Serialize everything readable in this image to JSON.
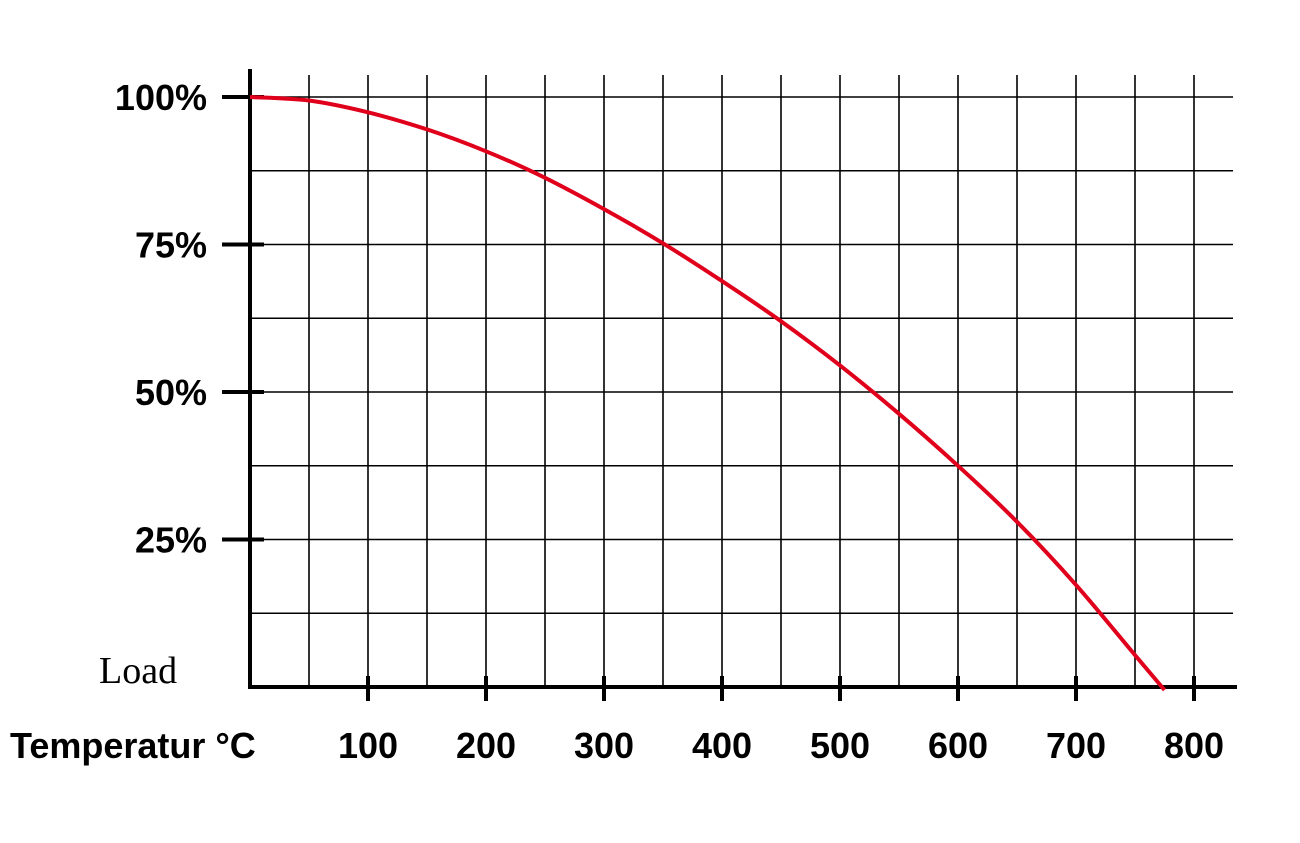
{
  "chart_data": {
    "type": "line",
    "title": "",
    "xlabel": "Temperatur °C",
    "ylabel": "Load",
    "xlim": [
      0,
      840
    ],
    "ylim": [
      0,
      100
    ],
    "x_ticks": [
      100,
      200,
      300,
      400,
      500,
      600,
      700,
      800
    ],
    "x_tick_labels": [
      "100",
      "200",
      "300",
      "400",
      "500",
      "600",
      "700",
      "800"
    ],
    "y_ticks": [
      25,
      50,
      75,
      100
    ],
    "y_tick_labels": [
      "25%",
      "50%",
      "75%",
      "100%"
    ],
    "x_grid_step": 50,
    "y_grid_step": 12.5,
    "grid": true,
    "legend": "none",
    "series": [
      {
        "color": "#e0001b",
        "x": [
          0,
          50,
          100,
          150,
          200,
          250,
          300,
          350,
          400,
          450,
          500,
          550,
          600,
          650,
          700,
          750,
          775
        ],
        "y": [
          100,
          99.4,
          97.4,
          94.5,
          90.8,
          86.3,
          81.0,
          75.2,
          68.8,
          62.0,
          54.5,
          46.3,
          37.5,
          28.0,
          17.3,
          5.4,
          -0.5
        ]
      }
    ]
  }
}
